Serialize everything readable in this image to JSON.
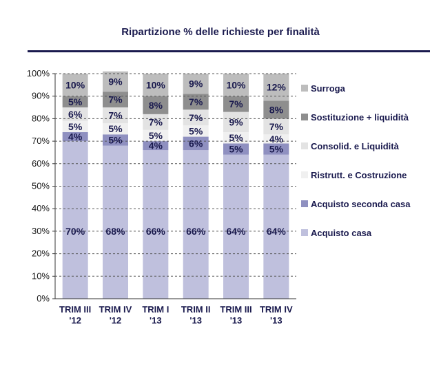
{
  "title": "Ripartizione % delle richieste per finalità",
  "chart_data": {
    "type": "bar",
    "stacked": true,
    "categories": [
      [
        "TRIM III",
        "'12"
      ],
      [
        "TRIM IV",
        "'12"
      ],
      [
        "TRIM I",
        "'13"
      ],
      [
        "TRIM II",
        "'13"
      ],
      [
        "TRIM III",
        "'13"
      ],
      [
        "TRIM IV",
        "'13"
      ]
    ],
    "ylim": [
      0,
      100
    ],
    "yticks": [
      0,
      10,
      20,
      30,
      40,
      50,
      60,
      70,
      80,
      90,
      100
    ],
    "ytick_labels": [
      "0%",
      "10%",
      "20%",
      "30%",
      "40%",
      "50%",
      "60%",
      "70%",
      "80%",
      "90%",
      "100%"
    ],
    "grid": "horizontal dashed",
    "legend_position": "right",
    "series": [
      {
        "name": "Acquisto casa",
        "color": "#bfc0dd",
        "values": [
          70,
          68,
          66,
          66,
          64,
          64
        ]
      },
      {
        "name": "Acquisto seconda casa",
        "color": "#8f90c0",
        "values": [
          4,
          5,
          4,
          6,
          5,
          5
        ]
      },
      {
        "name": "Ristrutt. e Costruzione",
        "color": "#f0f0f0",
        "values": [
          5,
          5,
          5,
          5,
          5,
          4
        ]
      },
      {
        "name": "Consolid. e Liquidità",
        "color": "#e3e3e3",
        "values": [
          6,
          7,
          7,
          7,
          9,
          7
        ]
      },
      {
        "name": "Sostituzione + liquidità",
        "color": "#8e8e8e",
        "values": [
          5,
          7,
          8,
          7,
          7,
          8
        ]
      },
      {
        "name": "Surroga",
        "color": "#bdbdbd",
        "values": [
          10,
          9,
          10,
          9,
          10,
          12
        ]
      }
    ],
    "value_labels": [
      [
        "70%",
        "68%",
        "66%",
        "66%",
        "64%",
        "64%"
      ],
      [
        "4%",
        "5%",
        "4%",
        "6%",
        "5%",
        "5%"
      ],
      [
        "5%",
        "5%",
        "5%",
        "5%",
        "5%",
        "4%"
      ],
      [
        "6%",
        "7%",
        "7%",
        "7%",
        "9%",
        "7%"
      ],
      [
        "5%",
        "7%",
        "8%",
        "7%",
        "7%",
        "8%"
      ],
      [
        "10%",
        "9%",
        "10%",
        "9%",
        "10%",
        "12%"
      ]
    ]
  }
}
